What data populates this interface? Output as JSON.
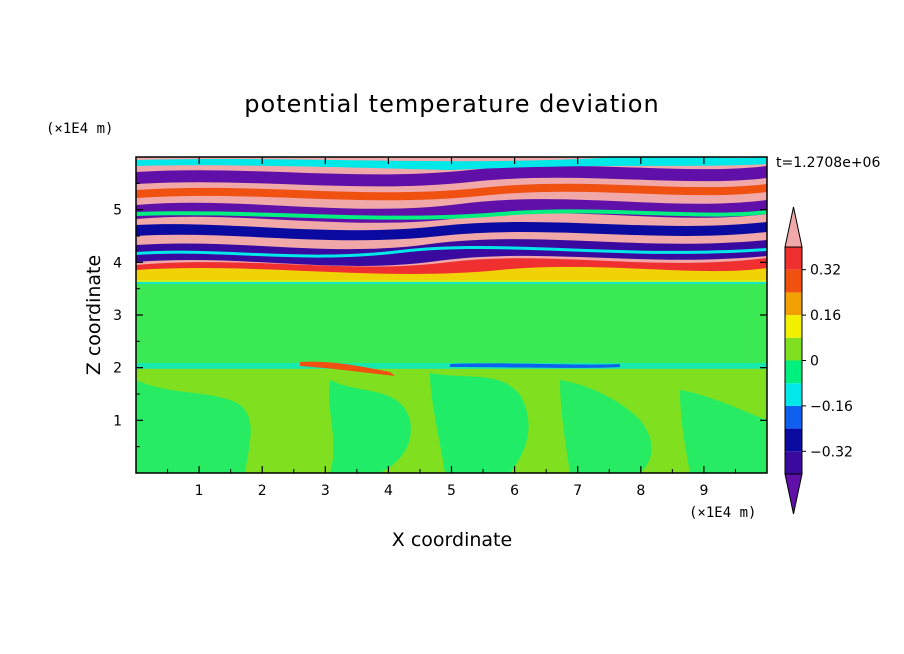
{
  "chart_data": {
    "type": "heatmap",
    "title": "potential temperature deviation",
    "xlabel": "X coordinate",
    "ylabel": "Z coordinate",
    "x_unit": "(×1E4 m)",
    "y_unit": "(×1E4 m)",
    "time_label": "t=1.2708e+06",
    "xlim": [
      0,
      10
    ],
    "ylim": [
      0,
      6
    ],
    "x_ticks": [
      "1",
      "2",
      "3",
      "4",
      "5",
      "6",
      "7",
      "8",
      "9"
    ],
    "y_ticks": [
      "1",
      "2",
      "3",
      "4",
      "5"
    ],
    "colorbar": {
      "levels": [
        -0.4,
        -0.32,
        -0.24,
        -0.16,
        -0.08,
        0,
        0.08,
        0.16,
        0.24,
        0.32,
        0.4
      ],
      "tick_labels": [
        "0.32",
        "0.16",
        "0",
        "−0.16",
        "−0.32"
      ],
      "tick_values": [
        0.32,
        0.16,
        0,
        -0.16,
        -0.32
      ],
      "colors": [
        "#6010a8",
        "#3a0aa0",
        "#0a0aa0",
        "#1060f0",
        "#00e8e8",
        "#00f080",
        "#80e020",
        "#f0f000",
        "#f0a000",
        "#f05010",
        "#f03030",
        "#f0a8a8"
      ],
      "extend": "both"
    },
    "description_zones": [
      {
        "z_range": [
          0,
          2.0
        ],
        "dominant": "green / light-green"
      },
      {
        "z_range": [
          2.0,
          2.1
        ],
        "dominant": "thin mixed band"
      },
      {
        "z_range": [
          2.1,
          3.7
        ],
        "dominant": "green / light-green"
      },
      {
        "z_range": [
          3.7,
          6.0
        ],
        "dominant": "alternating pink / purple / multicolor layers"
      }
    ]
  }
}
